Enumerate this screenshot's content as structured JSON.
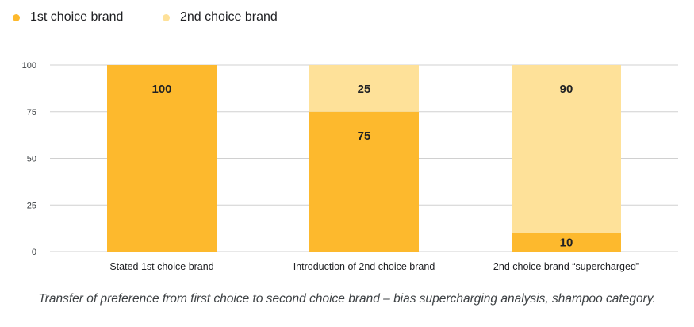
{
  "legend": {
    "items": [
      {
        "label": "1st choice brand",
        "color": "#FDB92D"
      },
      {
        "label": "2nd choice brand",
        "color": "#FEE199"
      }
    ],
    "placement": "top-left"
  },
  "caption": "Transfer of preference from first choice to second choice brand – bias supercharging analysis, shampoo category.",
  "chart_data": {
    "type": "bar",
    "stacked": true,
    "categories": [
      "Stated 1st choice brand",
      "Introduction of 2nd choice brand",
      "2nd choice brand “supercharged”"
    ],
    "series": [
      {
        "name": "1st choice brand",
        "values": [
          100,
          75,
          10
        ],
        "color": "#FDB92D"
      },
      {
        "name": "2nd choice brand",
        "values": [
          0,
          25,
          90
        ],
        "color": "#FEE199"
      }
    ],
    "ylim": [
      0,
      100
    ],
    "yticks": [
      0,
      25,
      50,
      75,
      100
    ],
    "grid": true,
    "data_labels": true
  }
}
